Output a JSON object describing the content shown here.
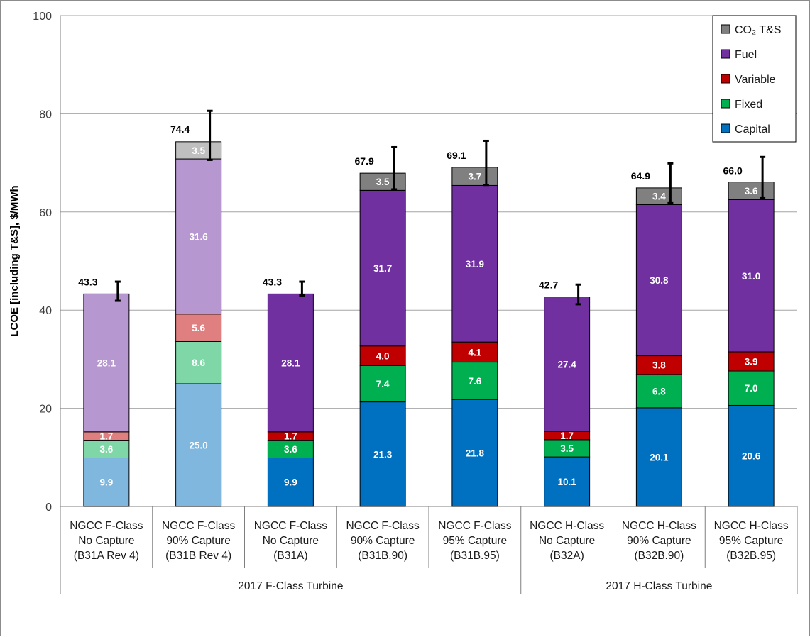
{
  "chart_data": {
    "type": "bar",
    "stacked": true,
    "ylabel": "LCOE [including T&S], $/MWh",
    "ylim": [
      0,
      100
    ],
    "yticks": [
      0,
      20,
      40,
      60,
      80,
      100
    ],
    "grid": true,
    "legend_position": "top-right",
    "categories": [
      [
        "NGCC F-Class",
        "No Capture",
        "(B31A Rev 4)"
      ],
      [
        "NGCC F-Class",
        "90% Capture",
        "(B31B Rev 4)"
      ],
      [
        "NGCC F-Class",
        "No Capture",
        "(B31A)"
      ],
      [
        "NGCC F-Class",
        "90% Capture",
        "(B31B.90)"
      ],
      [
        "NGCC F-Class",
        "95% Capture",
        "(B31B.95)"
      ],
      [
        "NGCC H-Class",
        "No Capture",
        "(B32A)"
      ],
      [
        "NGCC H-Class",
        "90% Capture",
        "(B32B.90)"
      ],
      [
        "NGCC H-Class",
        "95% Capture",
        "(B32B.95)"
      ]
    ],
    "groups": [
      {
        "label": "2017 F-Class Turbine",
        "start": 0,
        "end": 4
      },
      {
        "label": "2017 H-Class Turbine",
        "start": 5,
        "end": 7
      }
    ],
    "faded": [
      true,
      true,
      false,
      false,
      false,
      false,
      false,
      false
    ],
    "series": [
      {
        "name": "Capital",
        "color": "#0070c0",
        "faded_color": "#7fb7df",
        "values": [
          9.9,
          25.0,
          9.9,
          21.3,
          21.8,
          10.1,
          20.1,
          20.6
        ]
      },
      {
        "name": "Fixed",
        "color": "#00b050",
        "faded_color": "#7fd7a7",
        "values": [
          3.6,
          8.6,
          3.6,
          7.4,
          7.6,
          3.5,
          6.8,
          7.0
        ]
      },
      {
        "name": "Variable",
        "color": "#c00000",
        "faded_color": "#e07f7f",
        "values": [
          1.7,
          5.6,
          1.7,
          4.0,
          4.1,
          1.7,
          3.8,
          3.9
        ]
      },
      {
        "name": "Fuel",
        "color": "#7030a0",
        "faded_color": "#b797cf",
        "values": [
          28.1,
          31.6,
          28.1,
          31.7,
          31.9,
          27.4,
          30.8,
          31.0
        ]
      },
      {
        "name": "CO₂ T&S",
        "color": "#808080",
        "faded_color": "#bfbfbf",
        "values": [
          0,
          3.5,
          0,
          3.5,
          3.7,
          0,
          3.4,
          3.6
        ]
      }
    ],
    "totals": [
      43.3,
      74.4,
      43.3,
      67.9,
      69.1,
      42.7,
      64.9,
      66.0
    ],
    "error_ranges": [
      [
        41.9,
        45.8
      ],
      [
        70.6,
        80.6
      ],
      [
        43.0,
        45.8
      ],
      [
        64.6,
        73.2
      ],
      [
        65.5,
        74.5
      ],
      [
        41.2,
        45.2
      ],
      [
        61.8,
        69.9
      ],
      [
        62.8,
        71.2
      ]
    ]
  }
}
